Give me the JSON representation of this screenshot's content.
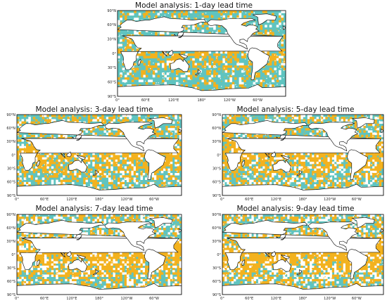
{
  "colors": {
    "ocean_a": "#5fc4c0",
    "ocean_b": "#f3b21e",
    "land": "#ffffff",
    "coast": "#000000"
  },
  "panels": [
    {
      "title": "Model analysis: 1-day lead time",
      "lat_labels": [
        "90°N",
        "60°N",
        "30°N",
        "0°",
        "30°S",
        "60°S",
        "90°S"
      ],
      "lon_labels": [
        "0°",
        "60°E",
        "120°E",
        "180°",
        "120°W",
        "60°W"
      ],
      "orange_share": 0.35
    },
    {
      "title": "Model analysis: 3-day lead time",
      "lat_labels": [
        "90°N",
        "60°N",
        "30°N",
        "0°",
        "30°S",
        "60°S",
        "90°S"
      ],
      "lon_labels": [
        "0°",
        "60°E",
        "120°E",
        "180°",
        "120°W",
        "60°W"
      ],
      "orange_share": 0.55
    },
    {
      "title": "Model analysis: 5-day lead time",
      "lat_labels": [
        "90°N",
        "60°N",
        "30°N",
        "0°",
        "30°S",
        "60°S",
        "90°S"
      ],
      "lon_labels": [
        "0°",
        "60°E",
        "120°E",
        "180°",
        "120°W",
        "60°W"
      ],
      "orange_share": 0.58
    },
    {
      "title": "Model analysis: 7-day lead time",
      "lat_labels": [
        "90°N",
        "60°N",
        "30°N",
        "0°",
        "30°S",
        "60°S",
        "90°S"
      ],
      "lon_labels": [
        "0°",
        "60°E",
        "120°E",
        "180°",
        "120°W",
        "60°W"
      ],
      "orange_share": 0.62
    },
    {
      "title": "Model analysis: 9-day lead time",
      "lat_labels": [
        "90°N",
        "60°N",
        "30°N",
        "0°",
        "30°S",
        "60°S",
        "90°S"
      ],
      "lon_labels": [
        "0°",
        "60°E",
        "120°E",
        "180°",
        "120°W",
        "60°W"
      ],
      "orange_share": 0.6
    }
  ]
}
